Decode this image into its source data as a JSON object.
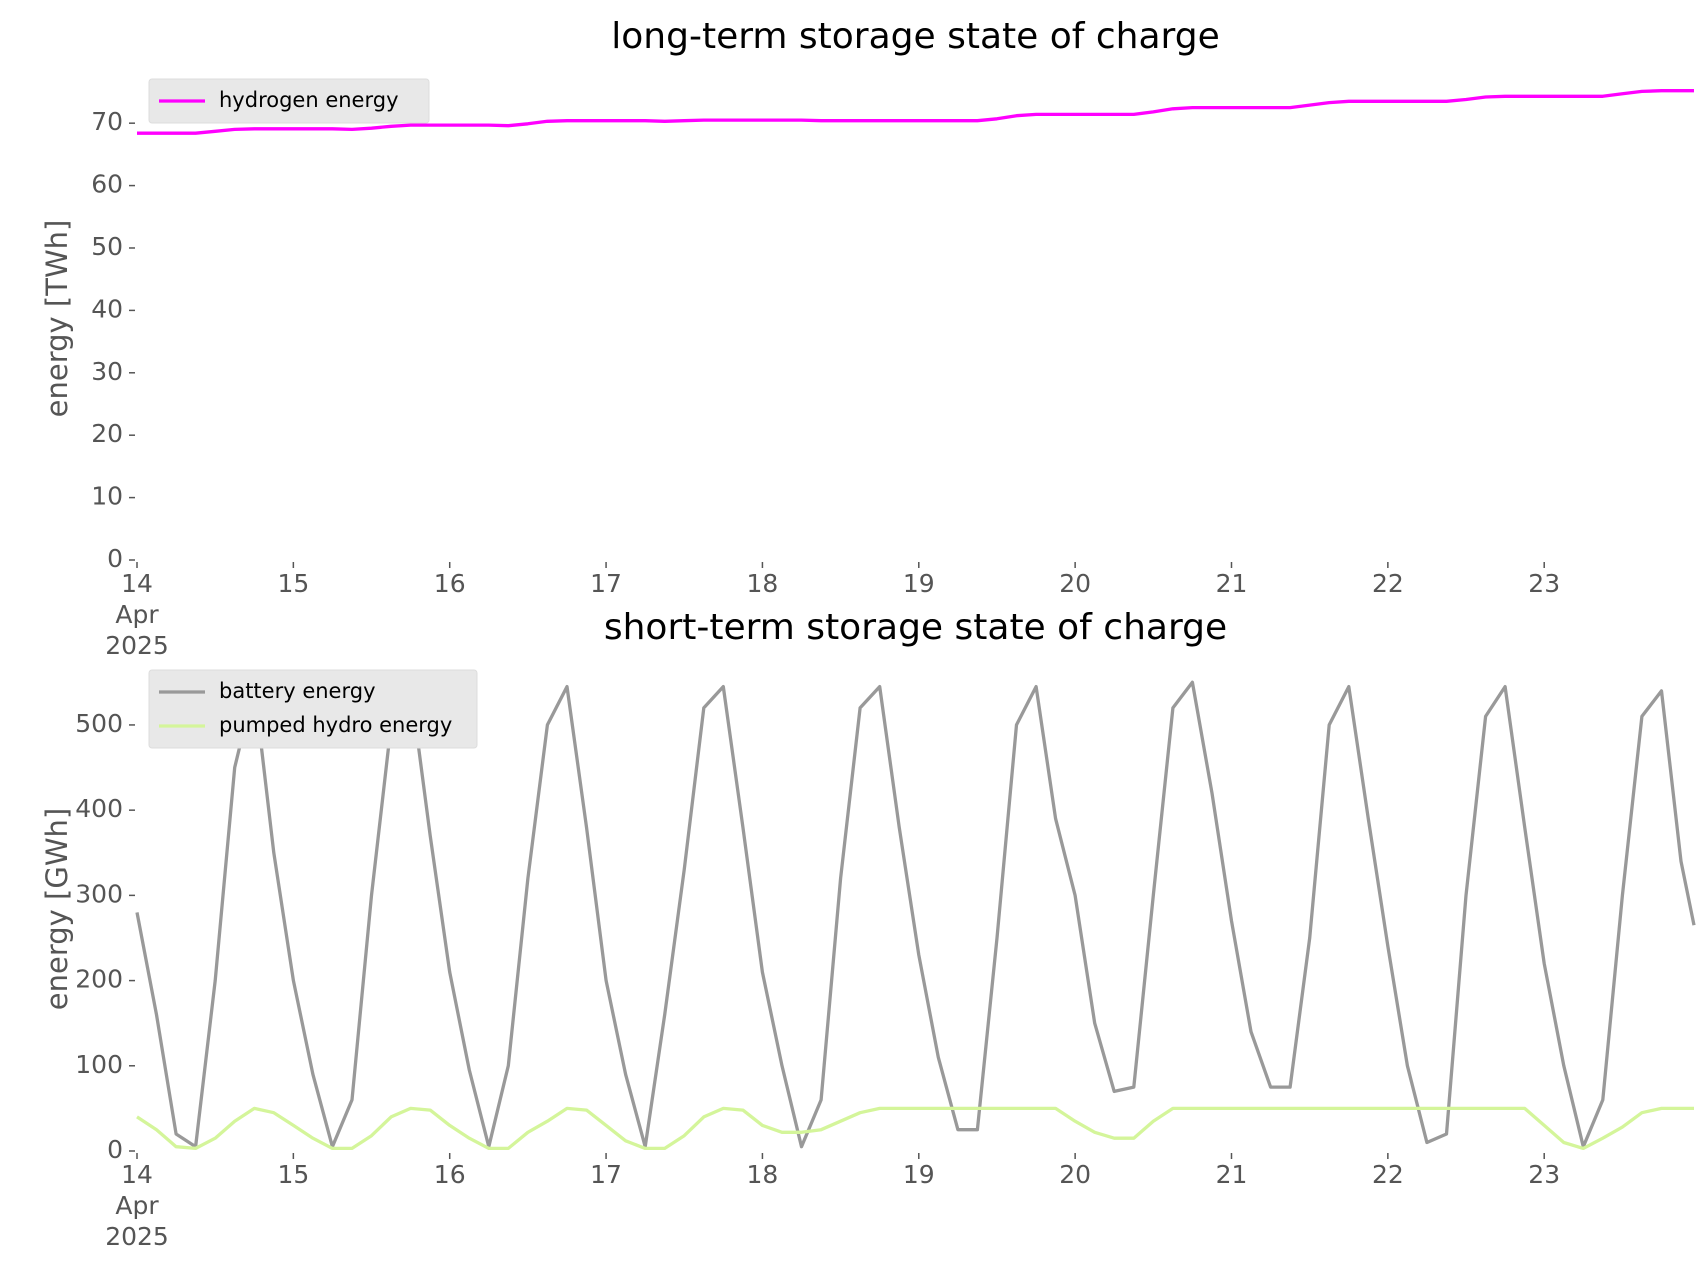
{
  "chart_data": [
    {
      "type": "line",
      "title": "long-term storage state of charge",
      "ylabel": "energy [TWh]",
      "x": [
        14,
        14.125,
        14.25,
        14.375,
        14.5,
        14.625,
        14.75,
        14.875,
        15,
        15.125,
        15.25,
        15.375,
        15.5,
        15.625,
        15.75,
        15.875,
        16,
        16.125,
        16.25,
        16.375,
        16.5,
        16.625,
        16.75,
        16.875,
        17,
        17.125,
        17.25,
        17.375,
        17.5,
        17.625,
        17.75,
        17.875,
        18,
        18.125,
        18.25,
        18.375,
        18.5,
        18.625,
        18.75,
        18.875,
        19,
        19.125,
        19.25,
        19.375,
        19.5,
        19.625,
        19.75,
        19.875,
        20,
        20.125,
        20.25,
        20.375,
        20.5,
        20.625,
        20.75,
        20.875,
        21,
        21.125,
        21.25,
        21.375,
        21.5,
        21.625,
        21.75,
        21.875,
        22,
        22.125,
        22.25,
        22.375,
        22.5,
        22.625,
        22.75,
        22.875,
        23,
        23.125,
        23.25,
        23.375,
        23.5,
        23.625,
        23.75,
        23.875,
        23.958
      ],
      "series": [
        {
          "name": "hydrogen energy",
          "color": "#ff00ff",
          "values": [
            68.4,
            68.4,
            68.4,
            68.4,
            68.7,
            69,
            69.1,
            69.1,
            69.1,
            69.1,
            69.1,
            69,
            69.2,
            69.5,
            69.7,
            69.7,
            69.7,
            69.7,
            69.7,
            69.6,
            69.9,
            70.3,
            70.4,
            70.4,
            70.4,
            70.4,
            70.4,
            70.3,
            70.4,
            70.5,
            70.5,
            70.5,
            70.5,
            70.5,
            70.5,
            70.4,
            70.4,
            70.4,
            70.4,
            70.4,
            70.4,
            70.4,
            70.4,
            70.4,
            70.7,
            71.2,
            71.4,
            71.4,
            71.4,
            71.4,
            71.4,
            71.4,
            71.8,
            72.3,
            72.5,
            72.5,
            72.5,
            72.5,
            72.5,
            72.5,
            72.9,
            73.3,
            73.5,
            73.5,
            73.5,
            73.5,
            73.5,
            73.5,
            73.8,
            74.2,
            74.3,
            74.3,
            74.3,
            74.3,
            74.3,
            74.3,
            74.7,
            75.1,
            75.2,
            75.2,
            75.2
          ]
        }
      ],
      "xlim": [
        14,
        23.958
      ],
      "ylim": [
        0,
        77.4
      ],
      "xticks": [
        {
          "value": 14,
          "label": "14\nApr\n2025"
        },
        15,
        16,
        17,
        18,
        19,
        20,
        21,
        22,
        23
      ],
      "yticks": [
        0,
        10,
        20,
        30,
        40,
        50,
        60,
        70
      ],
      "legend": "upper left",
      "grid": false
    },
    {
      "type": "line",
      "title": "short-term storage state of charge",
      "ylabel": "energy [GWh]",
      "x": [
        14,
        14.125,
        14.25,
        14.375,
        14.5,
        14.625,
        14.75,
        14.875,
        15,
        15.125,
        15.25,
        15.375,
        15.5,
        15.625,
        15.75,
        15.875,
        16,
        16.125,
        16.25,
        16.375,
        16.5,
        16.625,
        16.75,
        16.875,
        17,
        17.125,
        17.25,
        17.375,
        17.5,
        17.625,
        17.75,
        17.875,
        18,
        18.125,
        18.25,
        18.375,
        18.5,
        18.625,
        18.75,
        18.875,
        19,
        19.125,
        19.25,
        19.375,
        19.5,
        19.625,
        19.75,
        19.875,
        20,
        20.125,
        20.25,
        20.375,
        20.5,
        20.625,
        20.75,
        20.875,
        21,
        21.125,
        21.25,
        21.375,
        21.5,
        21.625,
        21.75,
        21.875,
        22,
        22.125,
        22.25,
        22.375,
        22.5,
        22.625,
        22.75,
        22.875,
        23,
        23.125,
        23.25,
        23.375,
        23.5,
        23.625,
        23.75,
        23.875,
        23.958
      ],
      "series": [
        {
          "name": "battery energy",
          "color": "#999999",
          "values": [
            280,
            160,
            20,
            5,
            200,
            450,
            545,
            350,
            200,
            90,
            5,
            60,
            300,
            500,
            545,
            370,
            210,
            95,
            5,
            100,
            320,
            500,
            545,
            380,
            200,
            90,
            5,
            160,
            330,
            520,
            545,
            380,
            210,
            100,
            5,
            60,
            320,
            520,
            545,
            380,
            230,
            110,
            25,
            25,
            250,
            500,
            545,
            390,
            300,
            150,
            70,
            75,
            300,
            520,
            550,
            420,
            270,
            140,
            75,
            75,
            250,
            500,
            545,
            390,
            240,
            100,
            10,
            20,
            300,
            510,
            545,
            380,
            220,
            100,
            5,
            60,
            300,
            510,
            540,
            340,
            265
          ]
        },
        {
          "name": "pumped hydro energy",
          "color": "#d4f59a",
          "values": [
            40,
            25,
            5,
            3,
            15,
            35,
            50,
            45,
            30,
            15,
            3,
            3,
            18,
            40,
            50,
            48,
            30,
            15,
            3,
            3,
            22,
            35,
            50,
            48,
            30,
            12,
            3,
            3,
            18,
            40,
            50,
            48,
            30,
            22,
            22,
            25,
            35,
            45,
            50,
            50,
            50,
            50,
            50,
            50,
            50,
            50,
            50,
            50,
            35,
            22,
            15,
            15,
            35,
            50,
            50,
            50,
            50,
            50,
            50,
            50,
            50,
            50,
            50,
            50,
            50,
            50,
            50,
            50,
            50,
            50,
            50,
            50,
            30,
            10,
            3,
            15,
            28,
            45,
            50,
            50,
            50
          ]
        }
      ],
      "xlim": [
        14,
        23.958
      ],
      "ylim": [
        0,
        568
      ],
      "xticks": [
        {
          "value": 14,
          "label": "14\nApr\n2025"
        },
        15,
        16,
        17,
        18,
        19,
        20,
        21,
        22,
        23
      ],
      "yticks": [
        0,
        100,
        200,
        300,
        400,
        500
      ],
      "legend": "upper left",
      "grid": false
    }
  ]
}
